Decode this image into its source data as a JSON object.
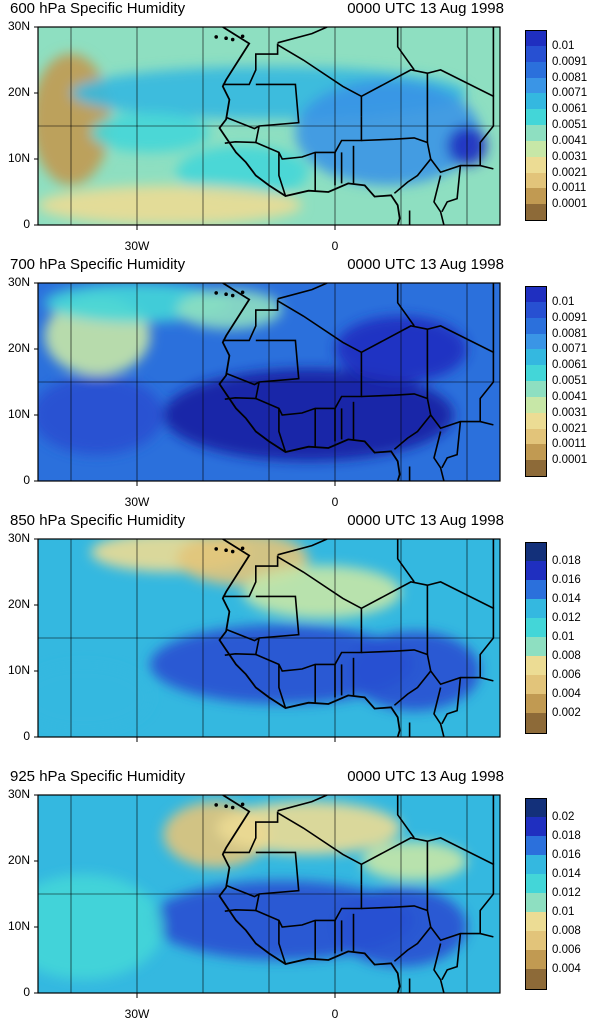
{
  "colors": {
    "scale": [
      "#8d6a38",
      "#c19a52",
      "#e2c47a",
      "#ecdc94",
      "#c7e7a7",
      "#8edfc1",
      "#43d6d8",
      "#34b8e0",
      "#3a95e6",
      "#2b70dc",
      "#2750d2",
      "#1f2fc0",
      "#1620a2",
      "#13307a"
    ],
    "outline": "#000000",
    "grid": "#000000"
  },
  "axes": {
    "lat_labels": [
      "30N",
      "20N",
      "10N",
      "0"
    ],
    "lon_labels": [
      "30W",
      "0"
    ]
  },
  "panels": [
    {
      "title": "600 hPa Specific Humidity",
      "time": "0000 UTC 13 Aug 1998",
      "colorbar_labels": [
        "0.01",
        "0.0091",
        "0.0081",
        "0.0071",
        "0.0061",
        "0.0051",
        "0.0041",
        "0.0031",
        "0.0021",
        "0.0011",
        "0.0001"
      ],
      "base_level": 5,
      "show_lon": true
    },
    {
      "title": "700 hPa Specific Humidity",
      "time": "0000 UTC 13 Aug 1998",
      "colorbar_labels": [
        "0.01",
        "0.0091",
        "0.0081",
        "0.0071",
        "0.0061",
        "0.0051",
        "0.0041",
        "0.0031",
        "0.0021",
        "0.0011",
        "0.0001"
      ],
      "base_level": 9,
      "show_lon": true
    },
    {
      "title": "850 hPa Specific Humidity",
      "time": "0000 UTC 13 Aug 1998",
      "colorbar_labels": [
        "0.018",
        "0.016",
        "0.014",
        "0.012",
        "0.01",
        "0.008",
        "0.006",
        "0.004",
        "0.002"
      ],
      "base_level": 7,
      "show_lon": false
    },
    {
      "title": "925 hPa Specific Humidity",
      "time": "0000 UTC 13 Aug 1998",
      "colorbar_labels": [
        "0.02",
        "0.018",
        "0.016",
        "0.014",
        "0.012",
        "0.01",
        "0.008",
        "0.006",
        "0.004"
      ],
      "base_level": 7,
      "show_lon": true
    }
  ]
}
